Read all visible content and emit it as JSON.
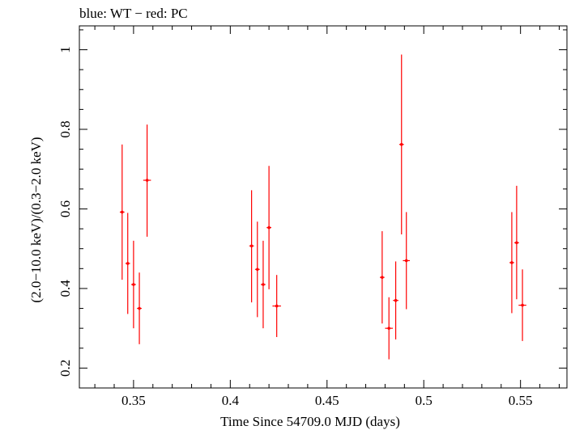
{
  "chart_data": {
    "type": "scatter",
    "title": "blue: WT − red: PC",
    "xlabel": "Time Since 54709.0 MJD (days)",
    "ylabel": "(2.0−10.0 keV)/(0.3−2.0 keV)",
    "xlim": [
      0.322,
      0.574
    ],
    "ylim": [
      0.15,
      1.06
    ],
    "x_ticks": [
      0.35,
      0.4,
      0.45,
      0.5,
      0.55
    ],
    "x_tick_labels": [
      "0.35",
      "0.4",
      "0.45",
      "0.5",
      "0.55"
    ],
    "y_ticks": [
      0.2,
      0.4,
      0.6,
      0.8,
      1.0
    ],
    "y_tick_labels": [
      "0.2",
      "0.4",
      "0.6",
      "0.8",
      "1"
    ],
    "grid": false,
    "series": [
      {
        "color": "#ff0000",
        "points": [
          {
            "x": 0.3441,
            "xerr": 0.0012,
            "y": 0.592,
            "ylo": 0.422,
            "yhi": 0.762
          },
          {
            "x": 0.347,
            "xerr": 0.0012,
            "y": 0.463,
            "ylo": 0.336,
            "yhi": 0.59
          },
          {
            "x": 0.35,
            "xerr": 0.0012,
            "y": 0.41,
            "ylo": 0.3,
            "yhi": 0.52
          },
          {
            "x": 0.353,
            "xerr": 0.0012,
            "y": 0.35,
            "ylo": 0.26,
            "yhi": 0.44
          },
          {
            "x": 0.357,
            "xerr": 0.002,
            "y": 0.672,
            "ylo": 0.53,
            "yhi": 0.812
          },
          {
            "x": 0.411,
            "xerr": 0.0012,
            "y": 0.507,
            "ylo": 0.365,
            "yhi": 0.647
          },
          {
            "x": 0.414,
            "xerr": 0.0012,
            "y": 0.448,
            "ylo": 0.328,
            "yhi": 0.568
          },
          {
            "x": 0.417,
            "xerr": 0.0012,
            "y": 0.41,
            "ylo": 0.3,
            "yhi": 0.52
          },
          {
            "x": 0.42,
            "xerr": 0.0012,
            "y": 0.553,
            "ylo": 0.398,
            "yhi": 0.708
          },
          {
            "x": 0.424,
            "xerr": 0.0022,
            "y": 0.356,
            "ylo": 0.278,
            "yhi": 0.434
          },
          {
            "x": 0.4785,
            "xerr": 0.0012,
            "y": 0.428,
            "ylo": 0.312,
            "yhi": 0.544
          },
          {
            "x": 0.482,
            "xerr": 0.002,
            "y": 0.3,
            "ylo": 0.222,
            "yhi": 0.378
          },
          {
            "x": 0.4855,
            "xerr": 0.0014,
            "y": 0.37,
            "ylo": 0.272,
            "yhi": 0.468
          },
          {
            "x": 0.4885,
            "xerr": 0.0012,
            "y": 0.762,
            "ylo": 0.536,
            "yhi": 0.988
          },
          {
            "x": 0.491,
            "xerr": 0.0018,
            "y": 0.47,
            "ylo": 0.348,
            "yhi": 0.592
          },
          {
            "x": 0.5455,
            "xerr": 0.0012,
            "y": 0.465,
            "ylo": 0.338,
            "yhi": 0.592
          },
          {
            "x": 0.548,
            "xerr": 0.0012,
            "y": 0.515,
            "ylo": 0.373,
            "yhi": 0.658
          },
          {
            "x": 0.551,
            "xerr": 0.002,
            "y": 0.358,
            "ylo": 0.268,
            "yhi": 0.448
          }
        ]
      }
    ]
  }
}
